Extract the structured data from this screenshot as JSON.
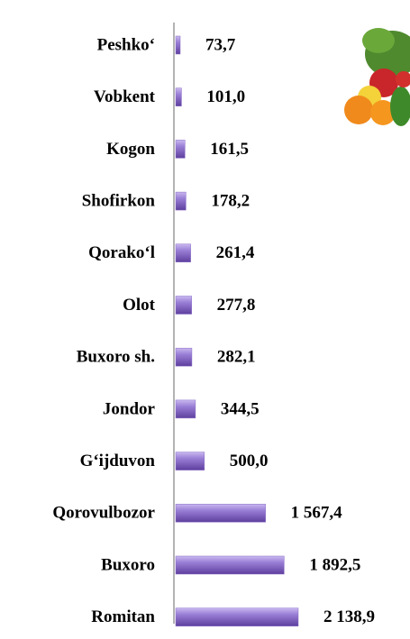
{
  "chart_data": {
    "type": "bar",
    "orientation": "horizontal",
    "categories": [
      "Peshko‘",
      "Vobkent",
      "Kogon",
      "Shofirkon",
      "Qorako‘l",
      "Olot",
      "Buxoro sh.",
      "Jondor",
      "G‘ijduvon",
      "Qorovulbozor",
      "Buxoro",
      "Romitan"
    ],
    "values": [
      73.7,
      101.0,
      161.5,
      178.2,
      261.4,
      277.8,
      282.1,
      344.5,
      500.0,
      1567.4,
      1892.5,
      2138.9
    ],
    "value_labels": [
      "73,7",
      "101,0",
      "161,5",
      "178,2",
      "261,4",
      "277,8",
      "282,1",
      "344,5",
      "500,0",
      "1 567,4",
      "1 892,5",
      "2 138,9"
    ],
    "color": "#8a6cc8"
  }
}
